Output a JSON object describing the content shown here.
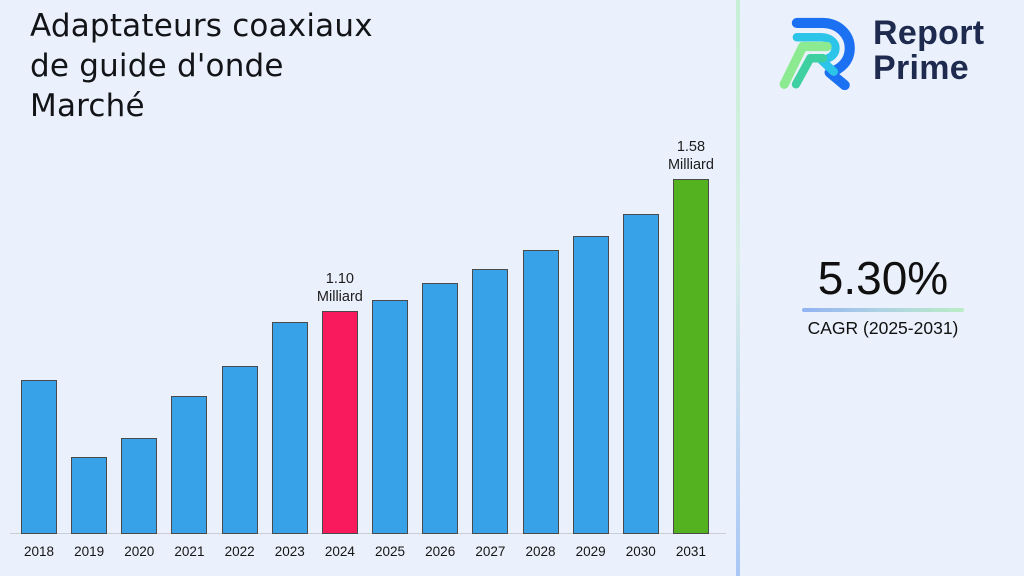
{
  "page": {
    "background_color": "#ebf1fc"
  },
  "header": {
    "title_lines": [
      "Adaptateurs coaxiaux",
      "de guide d'onde",
      "Marché"
    ]
  },
  "brand": {
    "icon": "report-prime-logo-mark",
    "line1": "Report",
    "line2": "Prime",
    "text_color": "#1e2a4e",
    "icon_colors": {
      "outer_blue": "#1c70f2",
      "inner_cyan": "#2cc4e9",
      "light_green": "#8cea90",
      "teal": "#3ed0a0"
    }
  },
  "chart_data": {
    "type": "bar",
    "title": "Adaptateurs coaxiaux de guide d'onde Marché",
    "xlabel": "",
    "ylabel": "",
    "unit": "Milliard",
    "categories": [
      "2018",
      "2019",
      "2020",
      "2021",
      "2022",
      "2023",
      "2024",
      "2025",
      "2026",
      "2027",
      "2028",
      "2029",
      "2030",
      "2031"
    ],
    "values": [
      0.85,
      0.57,
      0.64,
      0.79,
      0.9,
      1.06,
      1.1,
      1.14,
      1.2,
      1.25,
      1.32,
      1.37,
      1.45,
      1.58
    ],
    "ylim": [
      0.29,
      1.72
    ],
    "grid": false,
    "legend": false,
    "bar_color": "#38a2e8",
    "bar_border_color": "#4a4a4a",
    "highlights": {
      "2024": "#f9195d",
      "2031": "#54b221"
    },
    "annotations": [
      {
        "category": "2024",
        "line1": "1.10",
        "line2": "Milliard"
      },
      {
        "category": "2031",
        "line1": "1.58",
        "line2": "Milliard"
      }
    ],
    "axis_color": "#c9cdd4"
  },
  "cagr": {
    "value": "5.30%",
    "label": "CAGR (2025-2031)",
    "underline_gradient": [
      "#92b3f3",
      "#b9edc6"
    ]
  },
  "divider": {
    "gradient": [
      "#c6efd6",
      "#aac7f7"
    ]
  }
}
